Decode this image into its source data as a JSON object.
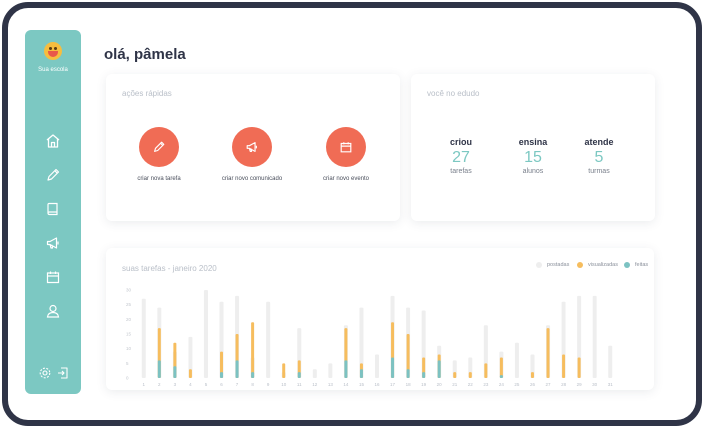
{
  "sidebar": {
    "school_name": "Sua escola",
    "nav": [
      "home-icon",
      "pencil-icon",
      "book-icon",
      "megaphone-icon",
      "calendar-icon",
      "user-icon"
    ],
    "bottom": [
      "settings-icon",
      "logout-icon"
    ]
  },
  "greeting": "olá, pâmela",
  "quick_actions": {
    "title": "ações rápidas",
    "items": [
      {
        "label": "criar nova tarefa",
        "icon": "pencil-icon"
      },
      {
        "label": "criar novo comunicado",
        "icon": "megaphone-icon"
      },
      {
        "label": "criar novo evento",
        "icon": "calendar-icon"
      }
    ]
  },
  "summary": {
    "title": "você no edudo",
    "stats": [
      {
        "verb": "criou",
        "value": "27",
        "unit": "tarefas"
      },
      {
        "verb": "ensina",
        "value": "15",
        "unit": "alunos"
      },
      {
        "verb": "atende",
        "value": "5",
        "unit": "turmas"
      }
    ]
  },
  "colors": {
    "accent": "#7cc8c2",
    "action": "#f06c55",
    "postadas": "#eeeeee",
    "visualizadas": "#f6bd5e",
    "feitas": "#7cc2c2"
  },
  "chart_data": {
    "type": "bar",
    "title": "suas tarefas - janeiro 2020",
    "ylim": [
      0,
      30
    ],
    "yticks": [
      "0",
      "5",
      "10",
      "15",
      "20",
      "25",
      "30"
    ],
    "categories": [
      "1",
      "2",
      "3",
      "4",
      "5",
      "6",
      "7",
      "8",
      "9",
      "10",
      "11",
      "12",
      "13",
      "14",
      "15",
      "16",
      "17",
      "18",
      "19",
      "20",
      "21",
      "22",
      "23",
      "24",
      "25",
      "26",
      "27",
      "28",
      "29",
      "30",
      "31"
    ],
    "series": [
      {
        "name": "postadas",
        "values": [
          27,
          24,
          9,
          14,
          30,
          26,
          28,
          7,
          26,
          2,
          17,
          3,
          5,
          18,
          24,
          8,
          28,
          24,
          23,
          11,
          6,
          7,
          18,
          9,
          12,
          8,
          18,
          26,
          28,
          28,
          11
        ]
      },
      {
        "name": "visualizadas",
        "values": [
          0,
          17,
          12,
          3,
          0,
          9,
          15,
          19,
          0,
          5,
          6,
          0,
          0,
          17,
          5,
          0,
          19,
          15,
          7,
          8,
          2,
          2,
          5,
          7,
          0,
          2,
          17,
          8,
          7,
          0,
          0
        ]
      },
      {
        "name": "feitas",
        "values": [
          0,
          6,
          4,
          0,
          0,
          2,
          6,
          2,
          0,
          0,
          2,
          0,
          0,
          6,
          3,
          0,
          7,
          3,
          2,
          6,
          0,
          0,
          0,
          1,
          0,
          0,
          0,
          0,
          0,
          0,
          0
        ]
      }
    ]
  }
}
